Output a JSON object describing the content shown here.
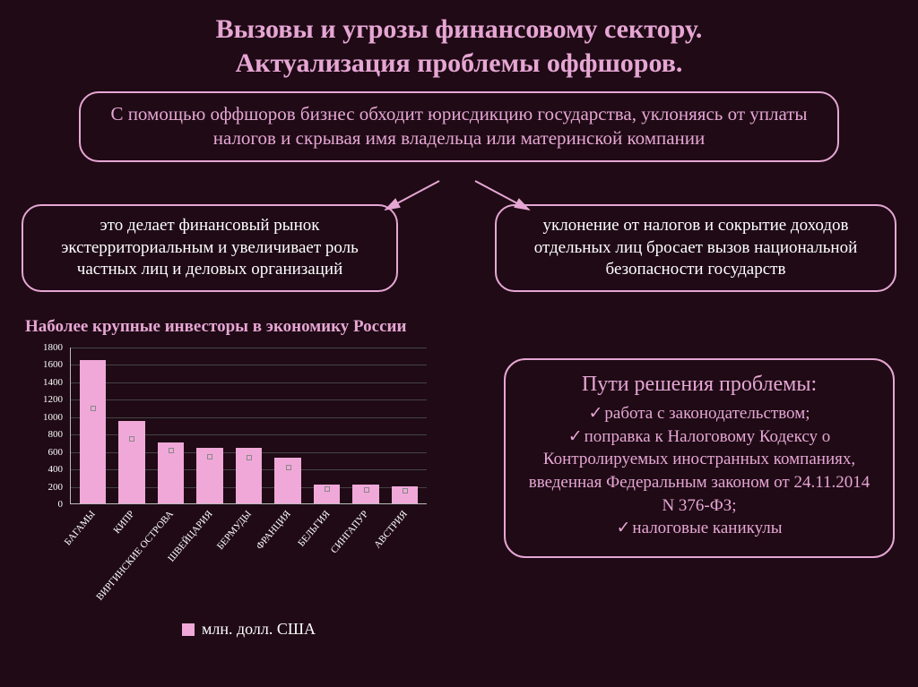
{
  "colors": {
    "background": "#1f0a15",
    "accent": "#e6a6d4",
    "text_white": "#ffffff",
    "bar_fill": "#f0a8d8",
    "axis": "#bbbbbb",
    "grid": "#444444",
    "series_border": "#888888"
  },
  "title_line1": "Вызовы и угрозы финансовому сектору.",
  "title_line2": "Актуализация проблемы оффшоров.",
  "box_main": "С помощью оффшоров бизнес обходит юрисдикцию государства, уклоняясь от уплаты налогов и скрывая имя владельца или материнской компании",
  "box_left": "это делает финансовый рынок экстерриториальным и увеличивает роль частных лиц и деловых организаций",
  "box_right": "уклонение от налогов и сокрытие доходов отдельных лиц бросает вызов национальной безопасности государств",
  "chart": {
    "type": "bar",
    "title": "Наболее крупные инвесторы в экономику России",
    "ylim": [
      0,
      1800
    ],
    "ytick_step": 200,
    "yticks": [
      0,
      200,
      400,
      600,
      800,
      1000,
      1200,
      1400,
      1600,
      1800
    ],
    "categories": [
      "БАГАМЫ",
      "КИПР",
      "ВИРГИНСКИЕ ОСТРОВА",
      "ШВЕЙЦАРИЯ",
      "БЕРМУДЫ",
      "ФРАНЦИЯ",
      "БЕЛЬГИЯ",
      "СИНГАПУР",
      "АВСТРИЯ"
    ],
    "values": [
      1650,
      950,
      700,
      640,
      640,
      520,
      220,
      220,
      200
    ],
    "bar_color": "#f0a8d8",
    "series_markers": [
      1100,
      750,
      620,
      550,
      530,
      420,
      180,
      160,
      150
    ],
    "legend_label": "млн. долл. США",
    "xlabel_rotation": -50,
    "label_fontsize": 11,
    "title_fontsize": 19
  },
  "solutions": {
    "title": "Пути решения проблемы:",
    "items": [
      "работа с законодательством;",
      "поправка к Налоговому Кодексу о Контролируемых иностранных компаниях, введенная Федеральным законом от 24.11.2014 N 376-ФЗ;",
      "налоговые каникулы"
    ]
  }
}
